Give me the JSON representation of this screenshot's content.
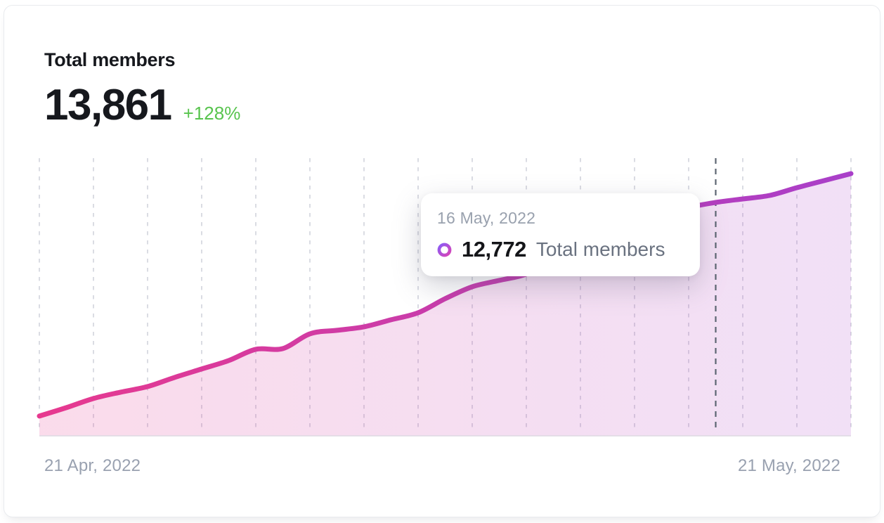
{
  "header": {
    "title": "Total members",
    "value": "13,861",
    "delta": "+128%"
  },
  "axis": {
    "left": "21 Apr, 2022",
    "right": "21 May, 2022"
  },
  "tooltip": {
    "date": "16 May, 2022",
    "value": "12,772",
    "label": "Total members",
    "point_index": 25
  },
  "colors": {
    "line_start": "#e7398f",
    "line_end": "#a93fc9",
    "area_start": "rgba(231,57,143,0.18)",
    "area_end": "rgba(169,63,201,0.16)",
    "delta_green": "#58c44e",
    "ring_start": "#8b5cf6",
    "ring_end": "#d843b6",
    "gridline": "#d6d8e0",
    "hover_line": "#5d6672",
    "baseline": "#ddd9e2"
  },
  "chart_data": {
    "type": "area",
    "title": "Total members",
    "legend": "Total members",
    "xlabel": "",
    "ylabel": "",
    "x_start_label": "21 Apr, 2022",
    "x_end_label": "21 May, 2022",
    "x_tick_interval_days": 2,
    "grid": "vertical-dashed",
    "ylim": [
      3950,
      13861
    ],
    "dates": [
      "21 Apr",
      "22 Apr",
      "23 Apr",
      "24 Apr",
      "25 Apr",
      "26 Apr",
      "27 Apr",
      "28 Apr",
      "29 Apr",
      "30 Apr",
      "1 May",
      "2 May",
      "3 May",
      "4 May",
      "5 May",
      "6 May",
      "7 May",
      "8 May",
      "9 May",
      "10 May",
      "11 May",
      "12 May",
      "13 May",
      "14 May",
      "15 May",
      "16 May",
      "17 May",
      "18 May",
      "19 May",
      "20 May",
      "21 May"
    ],
    "values": [
      4698,
      5016,
      5362,
      5600,
      5813,
      6159,
      6477,
      6796,
      7221,
      7248,
      7806,
      7939,
      8071,
      8337,
      8602,
      9134,
      9585,
      9824,
      10063,
      10594,
      11072,
      11577,
      11975,
      12320,
      12586,
      12772,
      12905,
      13038,
      13330,
      13595,
      13861
    ],
    "highlighted_point": {
      "date": "16 May, 2022",
      "value": 12772
    }
  }
}
